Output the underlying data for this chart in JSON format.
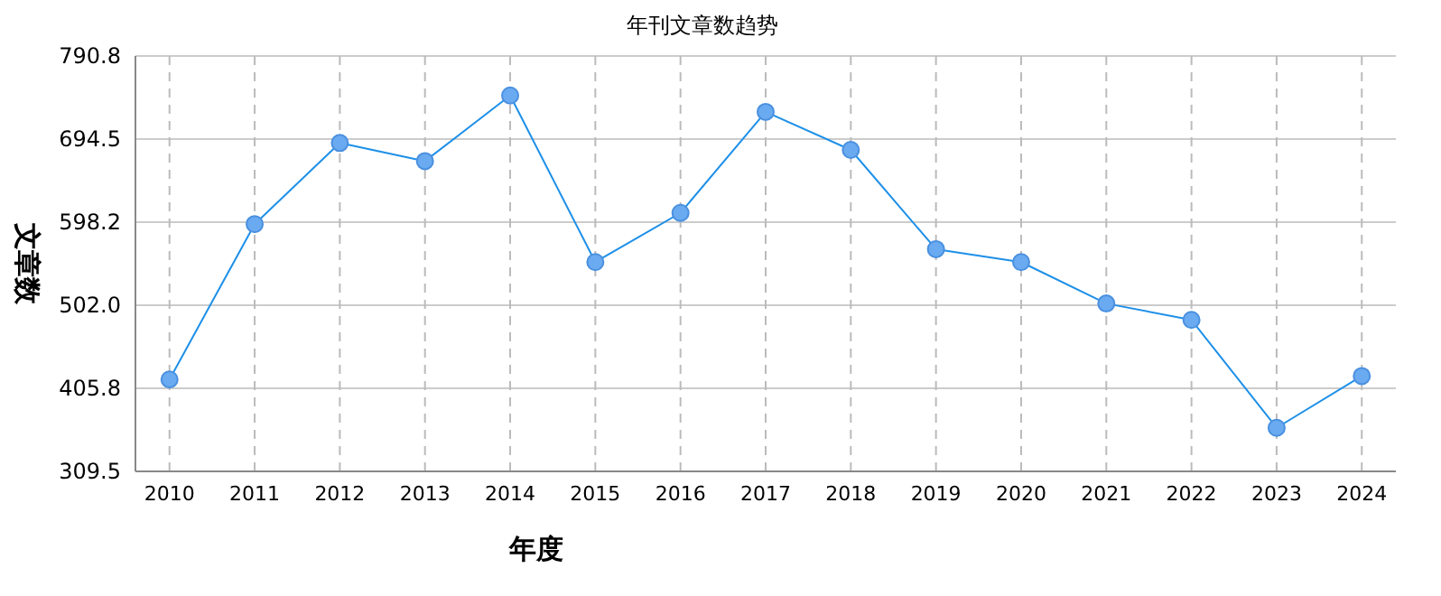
{
  "chart_data": {
    "type": "line",
    "title": "年刊文章数趋势",
    "xlabel": "年度",
    "ylabel": "文章数",
    "categories": [
      "2010",
      "2011",
      "2012",
      "2013",
      "2014",
      "2015",
      "2016",
      "2017",
      "2018",
      "2019",
      "2020",
      "2021",
      "2022",
      "2023",
      "2024"
    ],
    "series": [
      {
        "color": "#1e90e8",
        "values": [
          416,
          596,
          690,
          669,
          745,
          552,
          609,
          726,
          682,
          567,
          552,
          504,
          485,
          360,
          420
        ]
      }
    ],
    "ylim": [
      309.5,
      790.8
    ],
    "yticks": [
      309.5,
      405.8,
      {
        "value": 502,
        "label": "502.0"
      },
      598.2,
      694.5,
      790.8
    ],
    "grid": true,
    "marker": "circle",
    "line_style": "solid"
  }
}
